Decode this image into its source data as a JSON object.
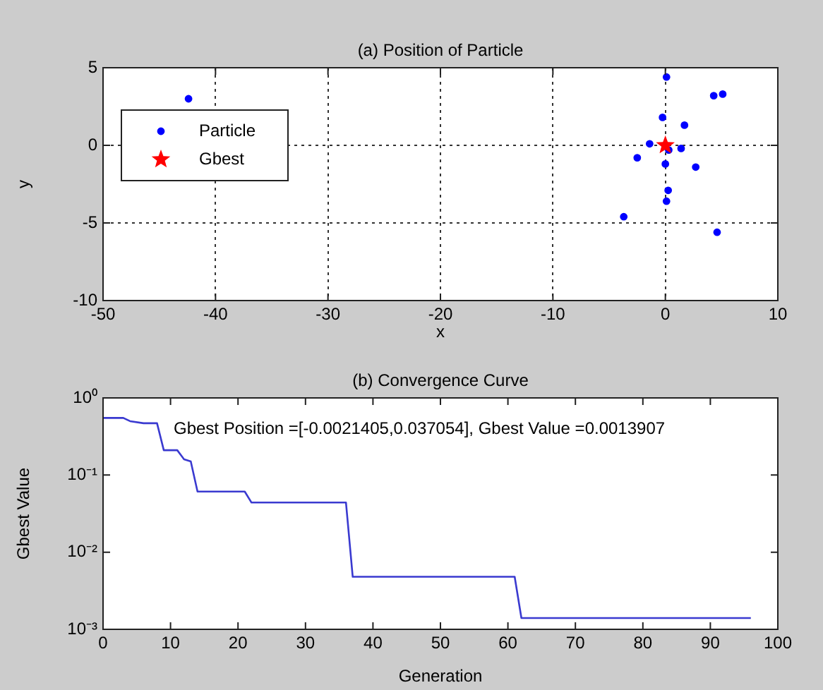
{
  "chart_data": [
    {
      "type": "scatter",
      "title": "(a) Position of Particle",
      "xlabel": "x",
      "ylabel": "y",
      "xlim": [
        -50,
        10
      ],
      "xticks": [
        -50,
        -40,
        -30,
        -20,
        -10,
        0,
        10
      ],
      "ylim": [
        -10,
        5
      ],
      "yticks": [
        -10,
        -5,
        0,
        5
      ],
      "grid": true,
      "legend": "top left",
      "series": [
        {
          "name": "Particle",
          "color": "#0000ff",
          "marker": "circle",
          "x": [
            -42.4,
            0.1,
            4.3,
            5.1,
            -0.25,
            1.7,
            -1.4,
            0.3,
            1.4,
            -2.5,
            2.7,
            0.0,
            0.25,
            0.1,
            -3.7,
            4.6
          ],
          "values": [
            3.0,
            4.4,
            3.2,
            3.3,
            1.8,
            1.3,
            0.1,
            -0.3,
            -0.2,
            -0.8,
            -1.4,
            -1.2,
            -2.9,
            -3.6,
            -4.6,
            -5.6
          ]
        },
        {
          "name": "Gbest",
          "color": "#ff0000",
          "marker": "star",
          "x": [
            0.0
          ],
          "values": [
            0.0
          ]
        }
      ]
    },
    {
      "type": "line",
      "title": "(b) Convergence Curve",
      "xlabel": "Generation",
      "ylabel": "Gbest Value",
      "log": true,
      "xlim": [
        0,
        100
      ],
      "xticks": [
        0,
        10,
        20,
        30,
        40,
        50,
        60,
        70,
        80,
        90,
        100
      ],
      "ylim": [
        0.001,
        1
      ],
      "yticks": [
        {
          "value": 0.001,
          "label": "10⁻³"
        },
        {
          "value": 0.01,
          "label": "10⁻²"
        },
        {
          "value": 0.1,
          "label": "10⁻¹"
        },
        {
          "value": 1,
          "label": "10⁰"
        }
      ],
      "grid": false,
      "legend": false,
      "annotations": [
        "Gbest Position =[-0.0021405,0.037054], Gbest Value =0.0013907"
      ],
      "series": [
        {
          "color": "#3a3ad0",
          "x": [
            0,
            3,
            4,
            6,
            8,
            9,
            11,
            12,
            13,
            14,
            21,
            22,
            36,
            37,
            61,
            62,
            96
          ],
          "values": [
            0.55,
            0.55,
            0.5,
            0.47,
            0.47,
            0.21,
            0.21,
            0.16,
            0.15,
            0.061,
            0.061,
            0.044,
            0.044,
            0.0048,
            0.0048,
            0.0014,
            0.0014
          ]
        }
      ]
    }
  ]
}
